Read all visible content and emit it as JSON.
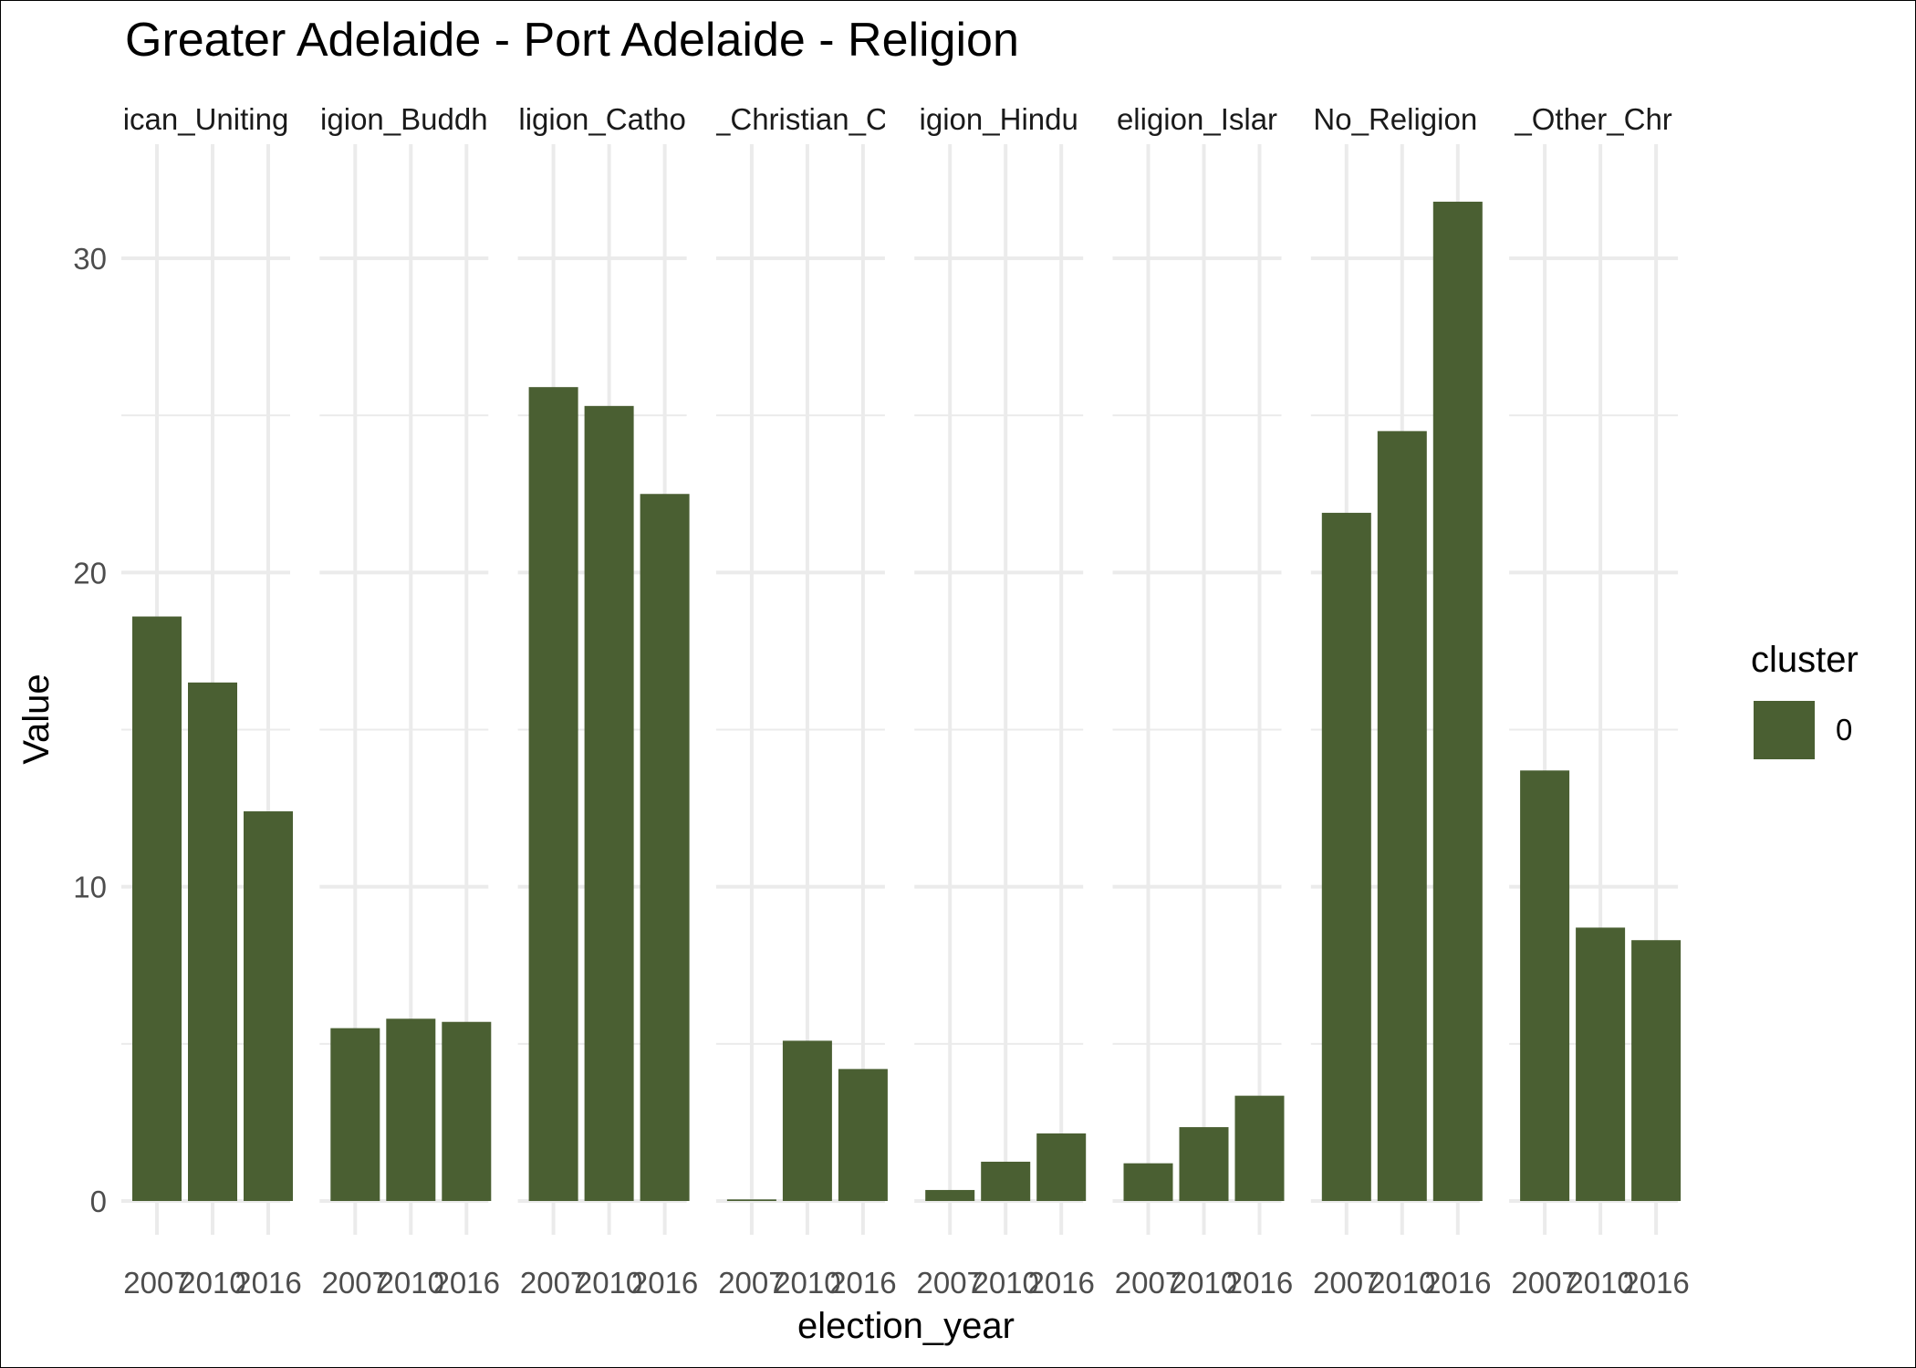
{
  "chart_data": {
    "type": "bar",
    "title": "Greater Adelaide - Port Adelaide - Religion",
    "xlabel": "election_year",
    "ylabel": "Value",
    "ylim": [
      0,
      33
    ],
    "y_ticks": [
      0,
      10,
      20,
      30
    ],
    "grid": true,
    "legend": {
      "title": "cluster",
      "position": "right",
      "entries": [
        {
          "label": "0",
          "color": "#4a5f32"
        }
      ]
    },
    "bar_color": "#4a5f32",
    "categories": [
      "2007",
      "2010",
      "2016"
    ],
    "facets": [
      {
        "label": "ican_Uniting",
        "values": [
          18.6,
          16.5,
          12.4
        ]
      },
      {
        "label": "igion_Buddh",
        "values": [
          5.5,
          5.8,
          5.7
        ]
      },
      {
        "label": "ligion_Catho",
        "values": [
          25.9,
          25.3,
          22.5
        ]
      },
      {
        "label": "_Christian_C",
        "values": [
          0.05,
          5.1,
          4.2
        ]
      },
      {
        "label": "igion_Hindu",
        "values": [
          0.35,
          1.25,
          2.15
        ]
      },
      {
        "label": "eligion_Islar",
        "values": [
          1.2,
          2.35,
          3.35
        ]
      },
      {
        "label": "No_Religion",
        "values": [
          21.9,
          24.5,
          31.8
        ]
      },
      {
        "label": "_Other_Chr",
        "values": [
          13.7,
          8.7,
          8.3
        ]
      }
    ]
  }
}
